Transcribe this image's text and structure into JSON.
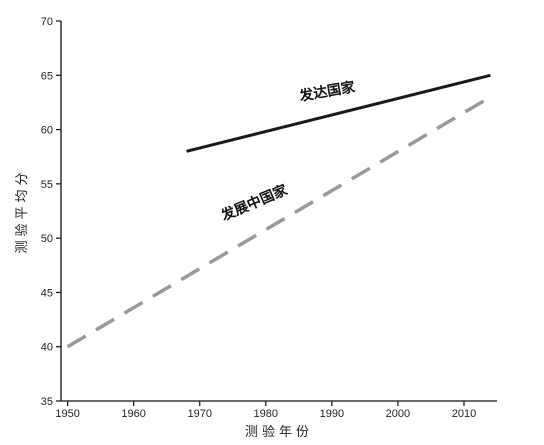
{
  "chart_data": {
    "type": "line",
    "title": "",
    "xlabel": "测验年份",
    "ylabel": "测验平均分",
    "xlim": [
      1949,
      2015
    ],
    "ylim": [
      35,
      70
    ],
    "xticks": [
      1950,
      1960,
      1970,
      1980,
      1990,
      2000,
      2010
    ],
    "yticks": [
      35,
      40,
      45,
      50,
      55,
      60,
      65,
      70
    ],
    "grid": false,
    "legend": "none",
    "series": [
      {
        "name": "发达国家",
        "x": [
          1968,
          2014
        ],
        "y": [
          58,
          65
        ],
        "style": "solid",
        "color": "#1a1a1a"
      },
      {
        "name": "发展中国家",
        "x": [
          1950,
          2014
        ],
        "y": [
          40,
          63
        ],
        "style": "dashed",
        "color": "#999999"
      }
    ]
  }
}
